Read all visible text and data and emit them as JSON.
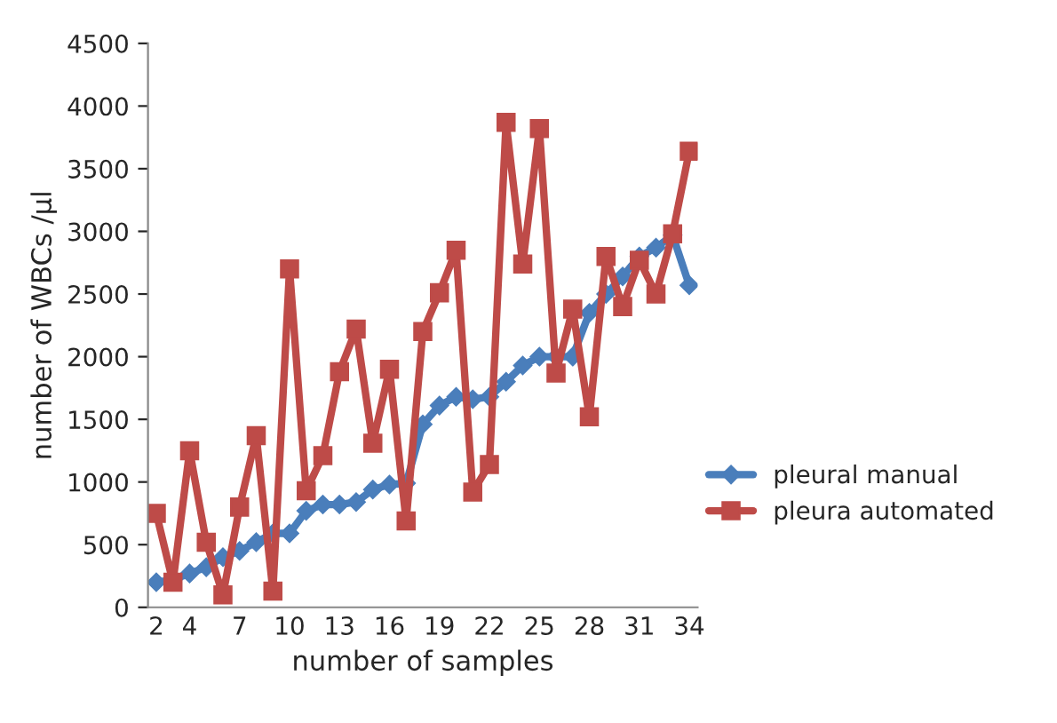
{
  "chart_data": {
    "type": "line",
    "xlabel": "number of samples",
    "ylabel": "number of WBCs /µl",
    "categories": [
      "2",
      null,
      "4",
      null,
      null,
      "7",
      null,
      null,
      "10",
      null,
      null,
      "13",
      null,
      null,
      "16",
      null,
      null,
      "19",
      null,
      null,
      "22",
      null,
      null,
      "25",
      null,
      null,
      "28",
      null,
      null,
      "31",
      null,
      null,
      "34"
    ],
    "series": [
      {
        "name": "pleural manual",
        "color": "#4a7ebb",
        "marker": "diamond",
        "values": [
          200,
          220,
          270,
          320,
          400,
          450,
          520,
          590,
          590,
          770,
          820,
          820,
          840,
          940,
          980,
          990,
          1460,
          1610,
          1680,
          1660,
          1680,
          1800,
          1930,
          2000,
          2000,
          2000,
          2350,
          2500,
          2640,
          2800,
          2870,
          2970,
          2570
        ]
      },
      {
        "name": "pleura automated",
        "color": "#be4b48",
        "marker": "square",
        "values": [
          750,
          200,
          1250,
          520,
          100,
          800,
          1370,
          130,
          2700,
          930,
          1210,
          1880,
          2220,
          1310,
          1900,
          690,
          2200,
          2510,
          2850,
          920,
          1140,
          3870,
          2740,
          3820,
          1870,
          2380,
          1520,
          2800,
          2400,
          2770,
          2500,
          2980,
          3640
        ]
      }
    ],
    "ylim": [
      0,
      4500
    ],
    "yticks": [
      0,
      500,
      1000,
      1500,
      2000,
      2500,
      3000,
      3500,
      4000,
      4500
    ],
    "grid": false,
    "legend": "right"
  }
}
